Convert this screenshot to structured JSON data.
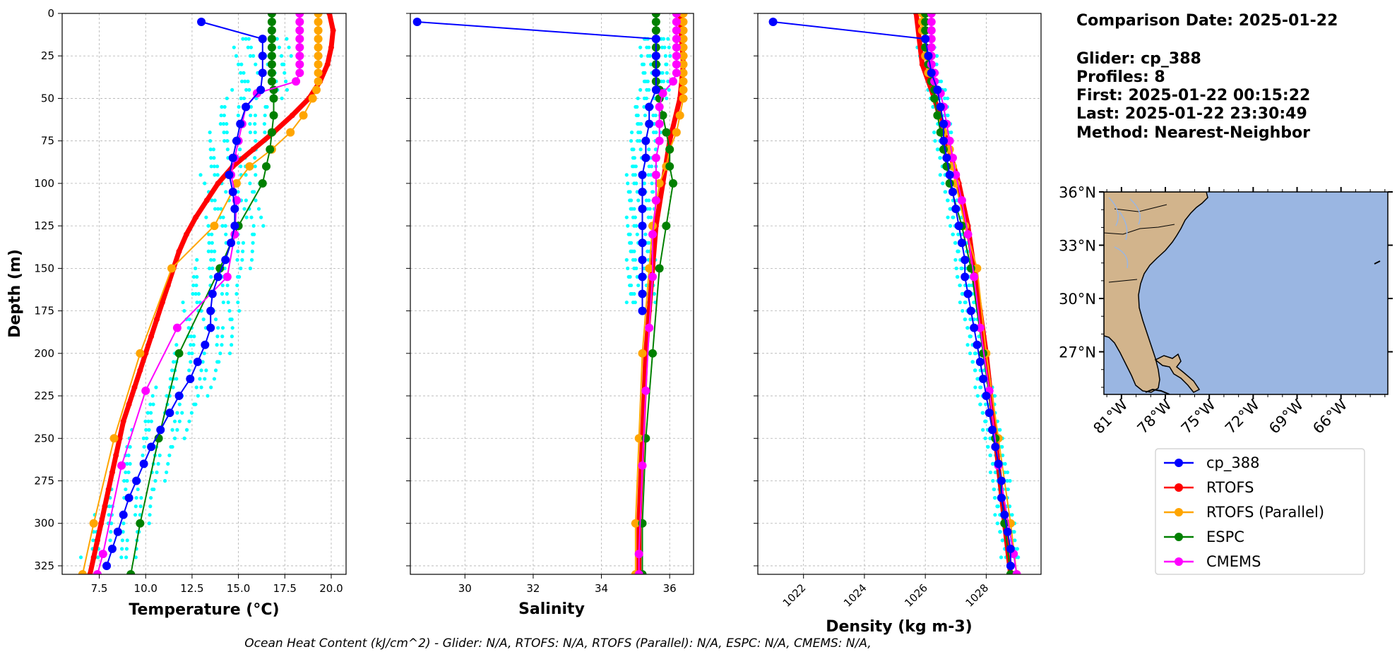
{
  "info": {
    "comparison": "Comparison Date: 2025-01-22",
    "glider": "Glider: cp_388",
    "profiles": "Profiles: 8",
    "first": "First: 2025-01-22 00:15:22",
    "last": "Last: 2025-01-22 23:30:49",
    "method": "Method: Nearest-Neighbor"
  },
  "footer": "Ocean Heat Content (kJ/cm^2) - Glider: N/A,  RTOFS: N/A,  RTOFS (Parallel): N/A,  ESPC: N/A,  CMEMS: N/A,",
  "colors": {
    "cp_388": "#0000ff",
    "RTOFS": "#ff0000",
    "RTOFS (Parallel)": "#ffa500",
    "ESPC": "#008000",
    "CMEMS": "#ff00ff",
    "scatter": "#00ffff",
    "land": "#d2b48c",
    "ocean": "#9ab6e2"
  },
  "chart_data": [
    {
      "type": "line",
      "xlabel": "Temperature (°C)",
      "ylabel": "Depth (m)",
      "xlim": [
        5.5,
        20.8
      ],
      "ylim": [
        330,
        0
      ],
      "xticks": [
        "7.5",
        "10.0",
        "12.5",
        "15.0",
        "17.5",
        "20.0"
      ],
      "yticks": [
        "0",
        "25",
        "50",
        "75",
        "100",
        "125",
        "150",
        "175",
        "200",
        "225",
        "250",
        "275",
        "300",
        "325"
      ],
      "grid": true,
      "series": [
        {
          "name": "cp_388",
          "depth": [
            5,
            15,
            25,
            35,
            45,
            55,
            65,
            75,
            85,
            95,
            105,
            115,
            125,
            135,
            145,
            155,
            165,
            175,
            185,
            195,
            205,
            215,
            225,
            235,
            245,
            255,
            265,
            275,
            285,
            295,
            305,
            315,
            325
          ],
          "values": [
            13.0,
            16.3,
            16.3,
            16.3,
            16.2,
            15.4,
            15.1,
            14.9,
            14.7,
            14.5,
            14.7,
            14.8,
            14.8,
            14.6,
            14.3,
            13.9,
            13.6,
            13.5,
            13.5,
            13.2,
            12.8,
            12.4,
            11.8,
            11.3,
            10.8,
            10.3,
            9.9,
            9.5,
            9.1,
            8.8,
            8.5,
            8.2,
            7.9
          ]
        },
        {
          "name": "RTOFS",
          "depth": [
            0,
            10,
            20,
            30,
            40,
            50,
            60,
            70,
            80,
            90,
            100,
            110,
            120,
            130,
            140,
            150,
            160,
            170,
            180,
            190,
            200,
            210,
            220,
            230,
            240,
            250,
            260,
            270,
            280,
            290,
            300,
            310,
            320,
            330
          ],
          "values": [
            19.9,
            20.1,
            20.0,
            19.8,
            19.4,
            18.8,
            17.9,
            16.9,
            15.8,
            14.7,
            13.9,
            13.3,
            12.7,
            12.2,
            11.8,
            11.5,
            11.2,
            10.9,
            10.6,
            10.3,
            10.0,
            9.7,
            9.4,
            9.1,
            8.8,
            8.6,
            8.4,
            8.2,
            8.0,
            7.8,
            7.6,
            7.4,
            7.2,
            7.0
          ]
        },
        {
          "name": "RTOFS (Parallel)",
          "depth": [
            0,
            5,
            10,
            15,
            20,
            25,
            30,
            35,
            40,
            45,
            50,
            60,
            70,
            80,
            90,
            100,
            125,
            150,
            200,
            250,
            300,
            330
          ],
          "values": [
            19.3,
            19.3,
            19.3,
            19.3,
            19.3,
            19.3,
            19.3,
            19.3,
            19.3,
            19.2,
            19.0,
            18.5,
            17.8,
            16.8,
            15.6,
            14.9,
            13.7,
            11.4,
            9.7,
            8.3,
            7.2,
            6.6
          ]
        },
        {
          "name": "ESPC",
          "depth": [
            0,
            5,
            10,
            15,
            20,
            25,
            30,
            35,
            40,
            45,
            50,
            60,
            70,
            80,
            90,
            100,
            125,
            150,
            200,
            250,
            300,
            330
          ],
          "values": [
            16.8,
            16.8,
            16.8,
            16.8,
            16.8,
            16.8,
            16.8,
            16.8,
            16.8,
            16.9,
            16.9,
            16.9,
            16.8,
            16.7,
            16.5,
            16.3,
            15.0,
            14.0,
            11.8,
            10.7,
            9.7,
            9.2
          ]
        },
        {
          "name": "CMEMS",
          "depth": [
            0,
            5,
            10,
            15,
            20,
            25,
            30,
            35,
            40,
            47,
            55,
            65,
            75,
            85,
            95,
            110,
            130,
            155,
            185,
            222,
            266,
            318,
            330
          ],
          "values": [
            18.3,
            18.3,
            18.3,
            18.3,
            18.3,
            18.3,
            18.3,
            18.3,
            18.1,
            16.0,
            15.4,
            15.2,
            15.0,
            14.8,
            14.6,
            14.9,
            14.8,
            14.4,
            11.7,
            10.0,
            8.7,
            7.7,
            7.4
          ]
        }
      ]
    },
    {
      "type": "line",
      "xlabel": "Salinity",
      "xlim": [
        28.4,
        36.7
      ],
      "ylim": [
        330,
        0
      ],
      "xticks": [
        "30",
        "32",
        "34",
        "36"
      ],
      "grid": true,
      "series": [
        {
          "name": "cp_388",
          "depth": [
            5,
            15,
            25,
            35,
            45,
            55,
            65,
            75,
            85,
            95,
            105,
            115,
            125,
            135,
            145,
            155,
            165,
            175
          ],
          "values": [
            28.6,
            35.6,
            35.6,
            35.6,
            35.6,
            35.4,
            35.4,
            35.3,
            35.3,
            35.2,
            35.2,
            35.2,
            35.2,
            35.2,
            35.2,
            35.2,
            35.2,
            35.2
          ]
        },
        {
          "name": "RTOFS",
          "depth": [
            0,
            30,
            50,
            75,
            100,
            125,
            150,
            175,
            200,
            250,
            300,
            330
          ],
          "values": [
            36.3,
            36.4,
            36.3,
            36.0,
            35.8,
            35.6,
            35.5,
            35.4,
            35.3,
            35.2,
            35.1,
            35.1
          ]
        },
        {
          "name": "RTOFS (Parallel)",
          "depth": [
            0,
            5,
            10,
            15,
            20,
            25,
            30,
            35,
            40,
            45,
            50,
            60,
            70,
            80,
            90,
            100,
            125,
            150,
            200,
            250,
            300,
            330
          ],
          "values": [
            36.4,
            36.4,
            36.4,
            36.4,
            36.4,
            36.4,
            36.4,
            36.4,
            36.4,
            36.4,
            36.4,
            36.3,
            36.2,
            36.0,
            35.9,
            35.7,
            35.5,
            35.4,
            35.2,
            35.1,
            35.0,
            35.0
          ]
        },
        {
          "name": "ESPC",
          "depth": [
            0,
            5,
            10,
            15,
            20,
            25,
            30,
            35,
            40,
            45,
            50,
            60,
            70,
            80,
            90,
            100,
            125,
            150,
            200,
            250,
            300,
            330
          ],
          "values": [
            35.6,
            35.6,
            35.6,
            35.6,
            35.6,
            35.6,
            35.6,
            35.6,
            35.6,
            35.7,
            35.7,
            35.8,
            35.9,
            36.0,
            36.0,
            36.1,
            35.9,
            35.7,
            35.5,
            35.3,
            35.2,
            35.2
          ]
        },
        {
          "name": "CMEMS",
          "depth": [
            0,
            5,
            10,
            15,
            20,
            25,
            30,
            35,
            40,
            47,
            55,
            65,
            75,
            85,
            95,
            110,
            130,
            155,
            185,
            222,
            266,
            318,
            330
          ],
          "values": [
            36.2,
            36.2,
            36.2,
            36.2,
            36.2,
            36.2,
            36.2,
            36.2,
            36.1,
            35.8,
            35.7,
            35.7,
            35.7,
            35.6,
            35.6,
            35.6,
            35.5,
            35.5,
            35.4,
            35.3,
            35.2,
            35.1,
            35.1
          ]
        }
      ]
    },
    {
      "type": "line",
      "xlabel": "Density (kg m-3)",
      "xlim": [
        1020.5,
        1029.8
      ],
      "ylim": [
        330,
        0
      ],
      "xticks": [
        "1022",
        "1024",
        "1026",
        "1028"
      ],
      "grid": true,
      "series": [
        {
          "name": "cp_388",
          "depth": [
            5,
            15,
            25,
            35,
            45,
            55,
            65,
            75,
            85,
            95,
            105,
            115,
            125,
            135,
            145,
            155,
            165,
            175,
            185,
            195,
            205,
            215,
            225,
            235,
            245,
            255,
            265,
            275,
            285,
            295,
            305,
            315,
            325
          ],
          "values": [
            1021.0,
            1026.0,
            1026.1,
            1026.2,
            1026.4,
            1026.5,
            1026.6,
            1026.6,
            1026.7,
            1026.8,
            1026.9,
            1027.0,
            1027.1,
            1027.2,
            1027.3,
            1027.3,
            1027.4,
            1027.5,
            1027.6,
            1027.7,
            1027.8,
            1027.9,
            1028.0,
            1028.1,
            1028.2,
            1028.3,
            1028.4,
            1028.5,
            1028.5,
            1028.6,
            1028.7,
            1028.8,
            1028.8
          ]
        },
        {
          "name": "RTOFS",
          "depth": [
            0,
            30,
            50,
            75,
            100,
            125,
            150,
            175,
            200,
            250,
            300,
            330
          ],
          "values": [
            1025.7,
            1025.9,
            1026.3,
            1026.7,
            1027.1,
            1027.4,
            1027.6,
            1027.8,
            1028.0,
            1028.3,
            1028.6,
            1028.8
          ]
        },
        {
          "name": "RTOFS (Parallel)",
          "depth": [
            0,
            5,
            10,
            15,
            20,
            25,
            30,
            35,
            40,
            45,
            50,
            60,
            70,
            80,
            90,
            100,
            125,
            150,
            200,
            250,
            300,
            330
          ],
          "values": [
            1025.9,
            1025.9,
            1025.9,
            1026.0,
            1026.0,
            1026.0,
            1026.1,
            1026.1,
            1026.2,
            1026.3,
            1026.3,
            1026.4,
            1026.6,
            1026.8,
            1026.9,
            1027.0,
            1027.3,
            1027.7,
            1028.0,
            1028.4,
            1028.8,
            1029.0
          ]
        },
        {
          "name": "ESPC",
          "depth": [
            0,
            5,
            10,
            15,
            20,
            25,
            30,
            35,
            40,
            45,
            50,
            60,
            70,
            80,
            90,
            100,
            125,
            150,
            200,
            250,
            300,
            330
          ],
          "values": [
            1026.0,
            1026.0,
            1026.0,
            1026.0,
            1026.0,
            1026.1,
            1026.1,
            1026.2,
            1026.2,
            1026.3,
            1026.3,
            1026.4,
            1026.5,
            1026.6,
            1026.7,
            1026.8,
            1027.2,
            1027.5,
            1027.9,
            1028.3,
            1028.6,
            1028.8
          ]
        },
        {
          "name": "CMEMS",
          "depth": [
            0,
            5,
            10,
            15,
            20,
            25,
            30,
            35,
            40,
            47,
            55,
            65,
            75,
            85,
            95,
            110,
            130,
            155,
            185,
            222,
            266,
            318,
            330
          ],
          "values": [
            1026.2,
            1026.2,
            1026.2,
            1026.2,
            1026.2,
            1026.2,
            1026.2,
            1026.3,
            1026.3,
            1026.5,
            1026.6,
            1026.7,
            1026.8,
            1026.9,
            1027.0,
            1027.2,
            1027.4,
            1027.6,
            1027.8,
            1028.1,
            1028.4,
            1028.9,
            1029.0
          ]
        }
      ]
    }
  ],
  "map": {
    "lat_ticks": [
      "36°N",
      "33°N",
      "30°N",
      "27°N"
    ],
    "lon_ticks": [
      "81°W",
      "78°W",
      "75°W",
      "72°W",
      "69°W",
      "66°W"
    ]
  },
  "legend": [
    "cp_388",
    "RTOFS",
    "RTOFS (Parallel)",
    "ESPC",
    "CMEMS"
  ]
}
